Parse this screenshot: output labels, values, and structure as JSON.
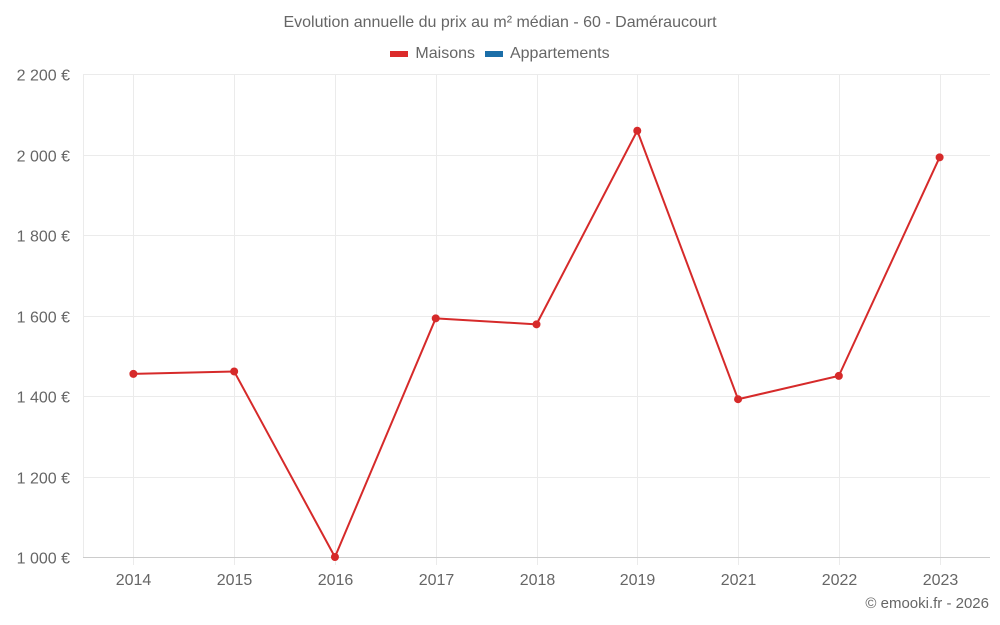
{
  "title": "Evolution annuelle du prix au m² médian - 60 - Daméraucourt",
  "legend": [
    {
      "label": "Maisons",
      "color": "#dc2b2b"
    },
    {
      "label": "Appartements",
      "color": "#1b6ea8"
    }
  ],
  "credits": "© emooki.fr - 2026",
  "colors": {
    "grid": "#ebebeb",
    "axis_line": "#cccccc",
    "tick_text": "#666666",
    "maisons_line": "#d62a2a"
  },
  "chart_data": {
    "type": "line",
    "title": "Evolution annuelle du prix au m² médian - 60 - Daméraucourt",
    "xlabel": "",
    "ylabel": "",
    "categories": [
      "2014",
      "2015",
      "2016",
      "2017",
      "2018",
      "2019",
      "2021",
      "2022",
      "2023"
    ],
    "series": [
      {
        "name": "Maisons",
        "color": "#d62a2a",
        "values": [
          1455,
          1461,
          1000,
          1593,
          1578,
          2059,
          1392,
          1450,
          1993
        ]
      },
      {
        "name": "Appartements",
        "color": "#1b6ea8",
        "values": []
      }
    ],
    "ylim": [
      1000,
      2200
    ],
    "yticks": [
      1000,
      1200,
      1400,
      1600,
      1800,
      2000,
      2200
    ],
    "ytick_labels": [
      "1 000 €",
      "1 200 €",
      "1 400 €",
      "1 600 €",
      "1 800 €",
      "2 000 €",
      "2 200 €"
    ],
    "grid": true,
    "legend_position": "top"
  }
}
